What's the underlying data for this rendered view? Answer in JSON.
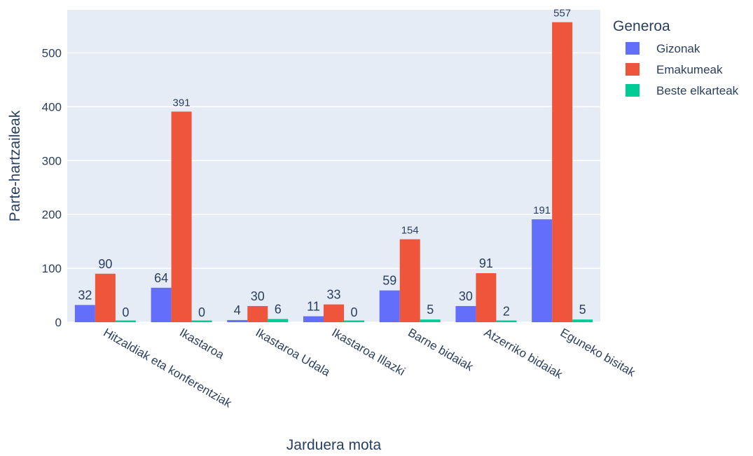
{
  "chart_data": {
    "type": "bar",
    "xlabel": "Jarduera mota",
    "ylabel": "Parte-hartzaileak",
    "ylim": [
      0,
      580
    ],
    "yticks": [
      0,
      100,
      200,
      300,
      400,
      500
    ],
    "grid": true,
    "legend": {
      "title": "Generoa",
      "position": "top-right"
    },
    "categories": [
      "Hitzaldiak eta konferentziak",
      "Ikastaroa",
      "Ikastaroa Udala",
      "Ikastaroa Illazki",
      "Barne bidaiak",
      "Atzerriko bidaiak",
      "Eguneko bisitak"
    ],
    "series": [
      {
        "name": "Gizonak",
        "color": "#636efa",
        "values": [
          32,
          64,
          4,
          11,
          59,
          30,
          191
        ]
      },
      {
        "name": "Emakumeak",
        "color": "#ef553b",
        "values": [
          90,
          391,
          30,
          33,
          154,
          91,
          557
        ]
      },
      {
        "name": "Beste elkarteak",
        "color": "#00cc96",
        "values": [
          0,
          0,
          6,
          0,
          5,
          2,
          5
        ]
      }
    ],
    "background_color": "#e5ecf6",
    "grid_color": "#ffffff"
  }
}
